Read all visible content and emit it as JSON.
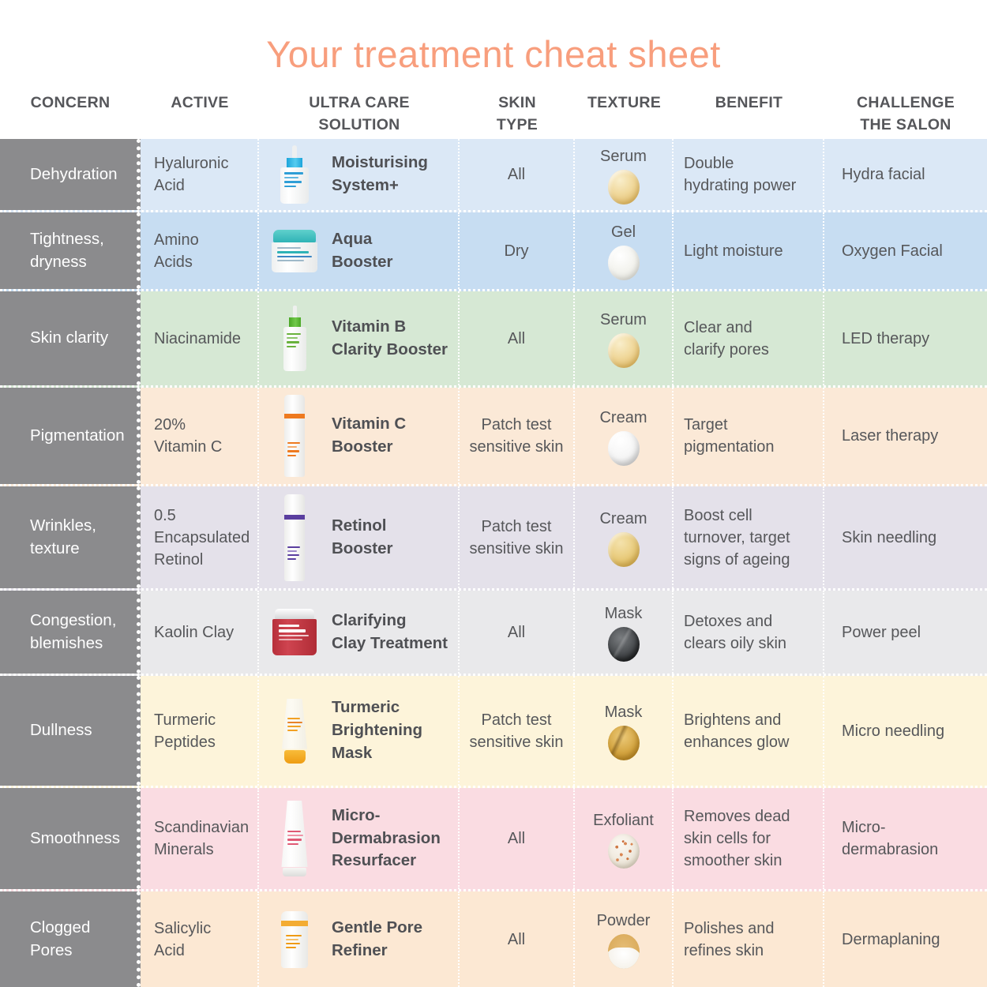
{
  "title": "Your treatment cheat sheet",
  "columns": [
    "CONCERN",
    "ACTIVE",
    "ULTRA CARE\nSOLUTION",
    "SKIN\nTYPE",
    "TEXTURE",
    "BENEFIT",
    "CHALLENGE\nTHE SALON"
  ],
  "colors": {
    "title": "#f89e7d",
    "header_text": "#55565a",
    "body_text": "#56575a",
    "concern_column_bg": "#8b8b8d",
    "concern_column_text": "#ffffff",
    "divider": "#ffffff"
  },
  "rows": [
    {
      "concern": "Dehydration",
      "active": "Hyaluronic\nAcid",
      "solution": "Moisturising\nSystem+",
      "skin_type": "All",
      "texture": "Serum",
      "benefit": "Double\nhydrating power",
      "challenge": "Hydra facial",
      "color": "#dbe8f6",
      "product_icon": "dropper-bottle-blue-icon",
      "texture_icon": "serum-drop-gold-icon"
    },
    {
      "concern": "Tightness,\ndryness",
      "active": "Amino\nAcids",
      "solution": "Aqua\nBooster",
      "skin_type": "Dry",
      "texture": "Gel",
      "benefit": "Light moisture",
      "challenge": "Oxygen Facial",
      "color": "#c7ddf2",
      "product_icon": "jar-teal-lid-icon",
      "texture_icon": "gel-drop-white-icon"
    },
    {
      "concern": "Skin clarity",
      "active": "Niacinamide",
      "solution": "Vitamin B\nClarity Booster",
      "skin_type": "All",
      "texture": "Serum",
      "benefit": "Clear and\nclarify pores",
      "challenge": "LED therapy",
      "color": "#d6e8d4",
      "product_icon": "dropper-bottle-green-icon",
      "texture_icon": "serum-drop-gold-icon"
    },
    {
      "concern": "Pigmentation",
      "active": "20%\nVitamin C",
      "solution": "Vitamin C\nBooster",
      "skin_type": "Patch test\nsensitive skin",
      "texture": "Cream",
      "benefit": "Target\npigmentation",
      "challenge": "Laser therapy",
      "color": "#fbe9d7",
      "product_icon": "cylinder-bottle-orange-icon",
      "texture_icon": "cream-drop-white-icon"
    },
    {
      "concern": "Wrinkles,\ntexture",
      "active": "0.5\nEncapsulated\nRetinol",
      "solution": "Retinol\nBooster",
      "skin_type": "Patch test\nsensitive skin",
      "texture": "Cream",
      "benefit": "Boost cell\nturnover, target\nsigns of ageing",
      "challenge": "Skin needling",
      "color": "#e4e1ea",
      "product_icon": "cylinder-bottle-purple-icon",
      "texture_icon": "cream-drop-gold-icon"
    },
    {
      "concern": "Congestion,\nblemishes",
      "active": "Kaolin Clay",
      "solution": "Clarifying\nClay Treatment",
      "skin_type": "All",
      "texture": "Mask",
      "benefit": "Detoxes and\nclears oily skin",
      "challenge": "Power peel",
      "color": "#e9e9eb",
      "product_icon": "jar-red-icon",
      "texture_icon": "mask-drop-charcoal-icon"
    },
    {
      "concern": "Dullness",
      "active": "Turmeric\nPeptides",
      "solution": "Turmeric\nBrightening\nMask",
      "skin_type": "Patch test\nsensitive skin",
      "texture": "Mask",
      "benefit": "Brightens and\nenhances glow",
      "challenge": "Micro needling",
      "color": "#fdf4da",
      "product_icon": "tube-orange-cap-icon",
      "texture_icon": "mask-drop-gold-icon"
    },
    {
      "concern": "Smoothness",
      "active": "Scandinavian\nMinerals",
      "solution": "Micro-\nDermabrasion\nResurfacer",
      "skin_type": "All",
      "texture": "Exfoliant",
      "benefit": "Removes dead\nskin cells for\nsmoother skin",
      "challenge": "Micro-\ndermabrasion",
      "color": "#fadce2",
      "product_icon": "tube-white-pink-icon",
      "texture_icon": "exfoliant-speckled-icon"
    },
    {
      "concern": "Clogged\nPores",
      "active": "Salicylic\nAcid",
      "solution": "Gentle Pore\nRefiner",
      "skin_type": "All",
      "texture": "Powder",
      "benefit": "Polishes and\nrefines skin",
      "challenge": "Dermaplaning",
      "color": "#fce8d3",
      "product_icon": "bottle-yellow-band-icon",
      "texture_icon": "powder-pile-icon"
    }
  ]
}
